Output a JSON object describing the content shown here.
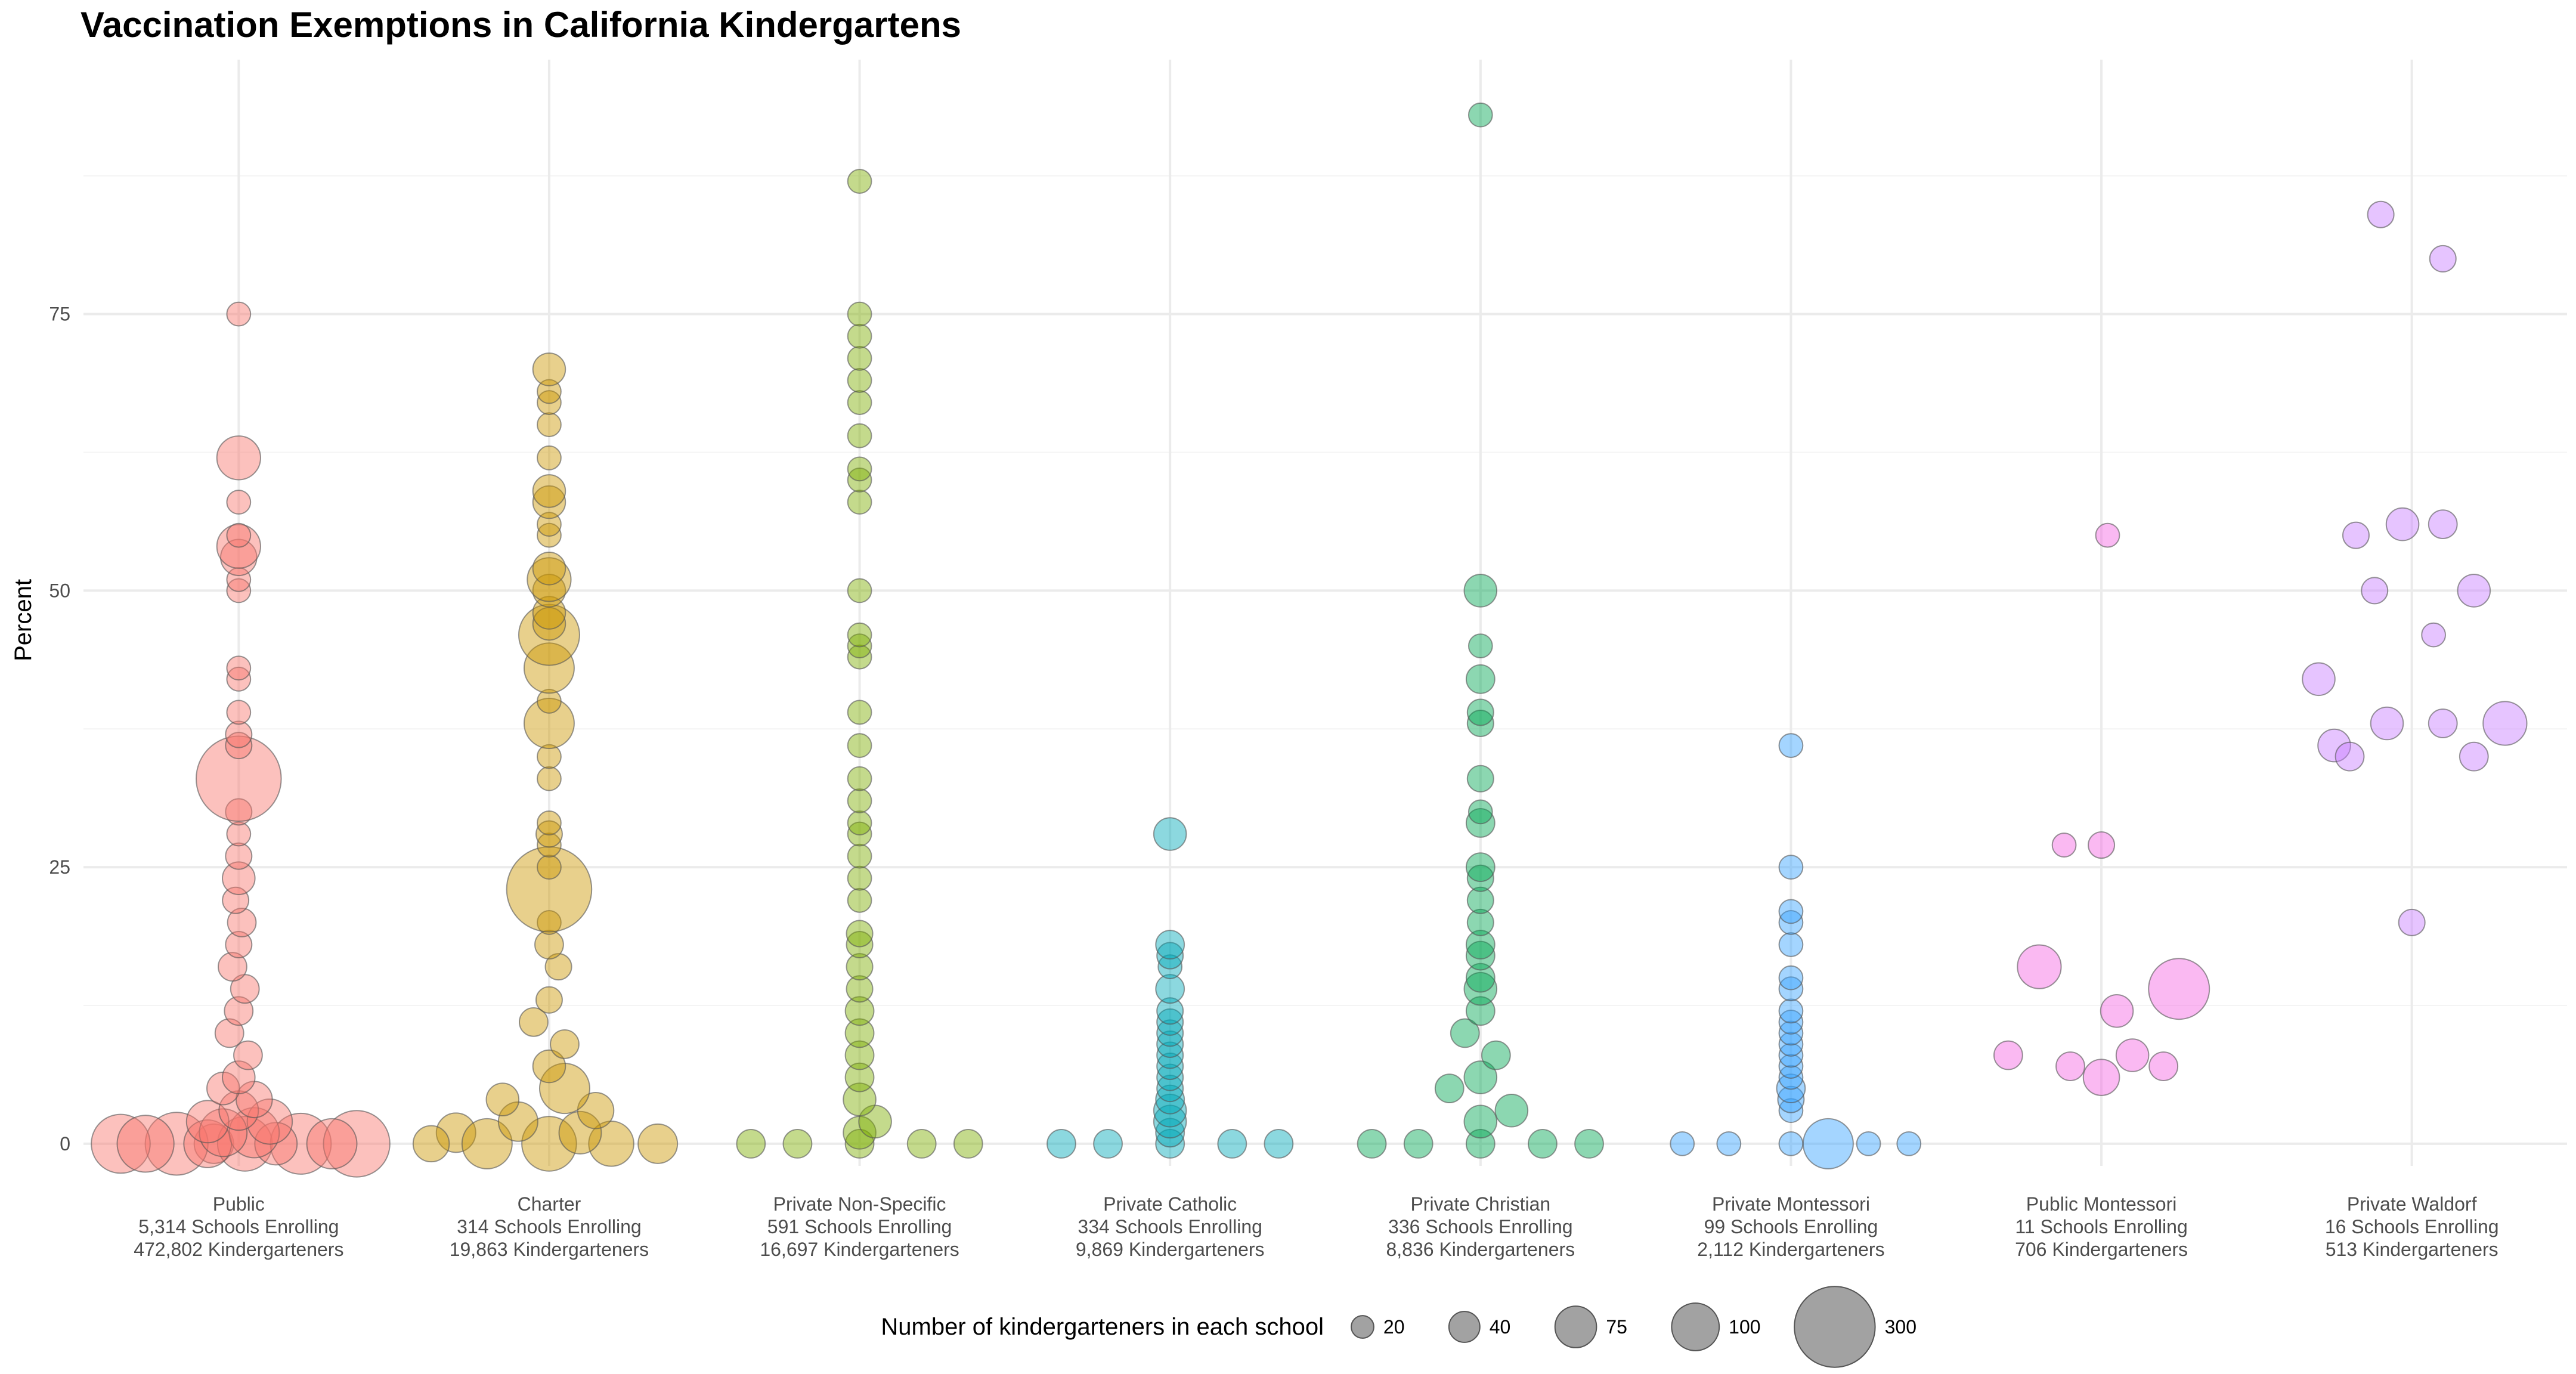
{
  "chart_data": {
    "type": "scatter",
    "title": "Vaccination Exemptions in California Kindergartens",
    "xlabel": "",
    "ylabel": "Percent",
    "ylim": [
      -2,
      98
    ],
    "yticks": [
      0,
      25,
      50,
      75
    ],
    "grid": true,
    "legend": {
      "title": "Number of kindergarteners in each school",
      "placement": "bottom",
      "sizes": [
        20,
        40,
        75,
        100,
        300
      ],
      "labels": [
        "20",
        "40",
        "75",
        "100",
        "300"
      ]
    },
    "categories": [
      {
        "label": "Public",
        "schools": "5,314 Schools Enrolling",
        "kids": "472,802 Kindergarteners",
        "color": "#F8766D"
      },
      {
        "label": "Charter",
        "schools": "314 Schools Enrolling",
        "kids": "19,863 Kindergarteners",
        "color": "#CD9600"
      },
      {
        "label": "Private Non-Specific",
        "schools": "591 Schools Enrolling",
        "kids": "16,697 Kindergarteners",
        "color": "#7CAE00"
      },
      {
        "label": "Private Catholic",
        "schools": "334 Schools Enrolling",
        "kids": "9,869 Kindergarteners",
        "color": "#00A9B8"
      },
      {
        "label": "Private Christian",
        "schools": "336 Schools Enrolling",
        "kids": "8,836 Kindergarteners",
        "color": "#00A652"
      },
      {
        "label": "Private Montessori",
        "schools": "99 Schools Enrolling",
        "kids": "2,112 Kindergarteners",
        "color": "#35A2FF"
      },
      {
        "label": "Public Montessori",
        "schools": "11 Schools Enrolling",
        "kids": "706 Kindergarteners",
        "color": "#F563E3"
      },
      {
        "label": "Private Waldorf",
        "schools": "16 Schools Enrolling",
        "kids": "513 Kindergarteners",
        "color": "#C77CFF"
      }
    ],
    "series": [
      {
        "name": "Public",
        "points": [
          [
            -0.08,
            0,
            60
          ],
          [
            0.02,
            0,
            120
          ],
          [
            0.2,
            0,
            150
          ],
          [
            0.38,
            0,
            180
          ],
          [
            -0.2,
            0,
            160
          ],
          [
            -0.38,
            0,
            140
          ],
          [
            -0.1,
            0,
            90
          ],
          [
            0.12,
            0,
            70
          ],
          [
            0.3,
            0,
            100
          ],
          [
            -0.3,
            0,
            130
          ],
          [
            0.05,
            1,
            100
          ],
          [
            -0.05,
            1,
            90
          ],
          [
            0.1,
            2,
            80
          ],
          [
            -0.1,
            2,
            70
          ],
          [
            0.0,
            3,
            60
          ],
          [
            0.05,
            4,
            50
          ],
          [
            -0.05,
            5,
            40
          ],
          [
            0.0,
            6,
            40
          ],
          [
            0.03,
            8,
            30
          ],
          [
            -0.03,
            10,
            30
          ],
          [
            0.0,
            12,
            30
          ],
          [
            0.02,
            14,
            30
          ],
          [
            -0.02,
            16,
            30
          ],
          [
            0.0,
            18,
            25
          ],
          [
            0.01,
            20,
            30
          ],
          [
            -0.01,
            22,
            25
          ],
          [
            0.0,
            24,
            40
          ],
          [
            0.0,
            26,
            25
          ],
          [
            0.0,
            28,
            20
          ],
          [
            0.0,
            30,
            25
          ],
          [
            0.0,
            33,
            300
          ],
          [
            0.0,
            36,
            25
          ],
          [
            0.0,
            37,
            25
          ],
          [
            0.0,
            39,
            20
          ],
          [
            0.0,
            42,
            20
          ],
          [
            0.0,
            43,
            20
          ],
          [
            0.0,
            50,
            20
          ],
          [
            0.0,
            51,
            20
          ],
          [
            0.0,
            53,
            50
          ],
          [
            0.0,
            54,
            75
          ],
          [
            0.0,
            55,
            20
          ],
          [
            0.0,
            58,
            20
          ],
          [
            0.0,
            62,
            75
          ],
          [
            0.0,
            75,
            20
          ]
        ]
      },
      {
        "name": "Charter",
        "points": [
          [
            -0.3,
            1,
            60
          ],
          [
            -0.2,
            0,
            100
          ],
          [
            0.0,
            0,
            120
          ],
          [
            0.2,
            0,
            80
          ],
          [
            0.35,
            0,
            60
          ],
          [
            -0.38,
            0,
            50
          ],
          [
            0.1,
            1,
            70
          ],
          [
            -0.1,
            2,
            60
          ],
          [
            0.15,
            3,
            50
          ],
          [
            -0.15,
            4,
            40
          ],
          [
            0.05,
            5,
            100
          ],
          [
            0.0,
            7,
            40
          ],
          [
            0.05,
            9,
            30
          ],
          [
            -0.05,
            11,
            30
          ],
          [
            0.0,
            13,
            25
          ],
          [
            0.03,
            16,
            25
          ],
          [
            0.0,
            18,
            30
          ],
          [
            0.0,
            20,
            20
          ],
          [
            0.0,
            23,
            300
          ],
          [
            0.0,
            25,
            20
          ],
          [
            0.0,
            27,
            20
          ],
          [
            0.0,
            28,
            25
          ],
          [
            0.0,
            29,
            20
          ],
          [
            0.0,
            33,
            20
          ],
          [
            0.0,
            35,
            20
          ],
          [
            0.0,
            38,
            100
          ],
          [
            0.0,
            40,
            20
          ],
          [
            0.0,
            43,
            100
          ],
          [
            0.0,
            46,
            150
          ],
          [
            0.0,
            47,
            40
          ],
          [
            0.0,
            48,
            40
          ],
          [
            0.0,
            50,
            40
          ],
          [
            0.0,
            51,
            75
          ],
          [
            0.0,
            52,
            40
          ],
          [
            0.0,
            55,
            20
          ],
          [
            0.0,
            56,
            20
          ],
          [
            0.0,
            58,
            40
          ],
          [
            0.0,
            59,
            40
          ],
          [
            0.0,
            62,
            20
          ],
          [
            0.0,
            65,
            20
          ],
          [
            0.0,
            67,
            20
          ],
          [
            0.0,
            68,
            20
          ],
          [
            0.0,
            70,
            40
          ]
        ]
      },
      {
        "name": "Private Non-Specific",
        "points": [
          [
            -0.35,
            0,
            30
          ],
          [
            -0.2,
            0,
            30
          ],
          [
            0.0,
            0,
            30
          ],
          [
            0.2,
            0,
            30
          ],
          [
            0.35,
            0,
            30
          ],
          [
            0.0,
            1,
            40
          ],
          [
            0.05,
            2,
            40
          ],
          [
            0.0,
            4,
            40
          ],
          [
            0.0,
            6,
            30
          ],
          [
            0.0,
            8,
            30
          ],
          [
            0.0,
            10,
            30
          ],
          [
            0.0,
            12,
            30
          ],
          [
            0.0,
            14,
            25
          ],
          [
            0.0,
            16,
            25
          ],
          [
            0.0,
            18,
            25
          ],
          [
            0.0,
            19,
            25
          ],
          [
            0.0,
            22,
            20
          ],
          [
            0.0,
            24,
            20
          ],
          [
            0.0,
            26,
            20
          ],
          [
            0.0,
            28,
            20
          ],
          [
            0.0,
            29,
            20
          ],
          [
            0.0,
            31,
            20
          ],
          [
            0.0,
            33,
            20
          ],
          [
            0.0,
            36,
            20
          ],
          [
            0.0,
            39,
            20
          ],
          [
            0.0,
            44,
            20
          ],
          [
            0.0,
            45,
            20
          ],
          [
            0.0,
            46,
            20
          ],
          [
            0.0,
            50,
            20
          ],
          [
            0.0,
            58,
            20
          ],
          [
            0.0,
            60,
            20
          ],
          [
            0.0,
            61,
            20
          ],
          [
            0.0,
            64,
            20
          ],
          [
            0.0,
            67,
            20
          ],
          [
            0.0,
            69,
            20
          ],
          [
            0.0,
            71,
            20
          ],
          [
            0.0,
            73,
            20
          ],
          [
            0.0,
            75,
            20
          ],
          [
            0.0,
            87,
            20
          ]
        ]
      },
      {
        "name": "Private Catholic",
        "points": [
          [
            -0.35,
            0,
            30
          ],
          [
            -0.2,
            0,
            30
          ],
          [
            0.0,
            0,
            30
          ],
          [
            0.2,
            0,
            30
          ],
          [
            0.35,
            0,
            30
          ],
          [
            0.0,
            1,
            30
          ],
          [
            0.0,
            2,
            40
          ],
          [
            0.0,
            3,
            40
          ],
          [
            0.0,
            4,
            30
          ],
          [
            0.0,
            5,
            25
          ],
          [
            0.0,
            6,
            25
          ],
          [
            0.0,
            7,
            25
          ],
          [
            0.0,
            8,
            25
          ],
          [
            0.0,
            9,
            25
          ],
          [
            0.0,
            10,
            25
          ],
          [
            0.0,
            11,
            25
          ],
          [
            0.0,
            12,
            25
          ],
          [
            0.0,
            14,
            30
          ],
          [
            0.0,
            16,
            20
          ],
          [
            0.0,
            17,
            25
          ],
          [
            0.0,
            18,
            30
          ],
          [
            0.0,
            28,
            40
          ]
        ]
      },
      {
        "name": "Private Christian",
        "points": [
          [
            -0.35,
            0,
            30
          ],
          [
            -0.2,
            0,
            30
          ],
          [
            0.0,
            0,
            30
          ],
          [
            0.2,
            0,
            30
          ],
          [
            0.35,
            0,
            30
          ],
          [
            0.0,
            2,
            40
          ],
          [
            0.1,
            3,
            40
          ],
          [
            -0.1,
            5,
            30
          ],
          [
            0.0,
            6,
            40
          ],
          [
            0.05,
            8,
            30
          ],
          [
            -0.05,
            10,
            30
          ],
          [
            0.0,
            12,
            30
          ],
          [
            0.0,
            14,
            40
          ],
          [
            0.0,
            15,
            30
          ],
          [
            0.0,
            17,
            30
          ],
          [
            0.0,
            18,
            30
          ],
          [
            0.0,
            20,
            25
          ],
          [
            0.0,
            22,
            25
          ],
          [
            0.0,
            24,
            25
          ],
          [
            0.0,
            25,
            30
          ],
          [
            0.0,
            29,
            30
          ],
          [
            0.0,
            30,
            20
          ],
          [
            0.0,
            33,
            25
          ],
          [
            0.0,
            38,
            25
          ],
          [
            0.0,
            39,
            25
          ],
          [
            0.0,
            42,
            30
          ],
          [
            0.0,
            45,
            20
          ],
          [
            0.0,
            50,
            40
          ],
          [
            0.0,
            93,
            20
          ]
        ]
      },
      {
        "name": "Private Montessori",
        "points": [
          [
            -0.35,
            0,
            20
          ],
          [
            -0.2,
            0,
            20
          ],
          [
            0.0,
            0,
            20
          ],
          [
            0.12,
            0,
            100
          ],
          [
            0.25,
            0,
            20
          ],
          [
            0.38,
            0,
            20
          ],
          [
            0.0,
            3,
            20
          ],
          [
            0.0,
            4,
            25
          ],
          [
            0.0,
            5,
            30
          ],
          [
            0.0,
            6,
            20
          ],
          [
            0.0,
            7,
            20
          ],
          [
            0.0,
            8,
            20
          ],
          [
            0.0,
            9,
            20
          ],
          [
            0.0,
            10,
            20
          ],
          [
            0.0,
            11,
            20
          ],
          [
            0.0,
            12,
            20
          ],
          [
            0.0,
            14,
            20
          ],
          [
            0.0,
            15,
            20
          ],
          [
            0.0,
            18,
            20
          ],
          [
            0.0,
            20,
            20
          ],
          [
            0.0,
            21,
            20
          ],
          [
            0.0,
            25,
            20
          ],
          [
            0.0,
            36,
            20
          ]
        ]
      },
      {
        "name": "Public Montessori",
        "points": [
          [
            -0.3,
            8,
            30
          ],
          [
            -0.2,
            16,
            75
          ],
          [
            -0.1,
            7,
            30
          ],
          [
            0.0,
            6,
            50
          ],
          [
            0.05,
            12,
            40
          ],
          [
            0.1,
            8,
            40
          ],
          [
            0.2,
            7,
            30
          ],
          [
            0.25,
            14,
            150
          ],
          [
            -0.12,
            27,
            20
          ],
          [
            0.0,
            27,
            25
          ],
          [
            0.02,
            55,
            20
          ]
        ]
      },
      {
        "name": "Private Waldorf",
        "points": [
          [
            -0.3,
            42,
            40
          ],
          [
            -0.25,
            36,
            40
          ],
          [
            -0.2,
            35,
            30
          ],
          [
            -0.18,
            55,
            25
          ],
          [
            -0.12,
            50,
            25
          ],
          [
            -0.08,
            38,
            40
          ],
          [
            -0.1,
            84,
            25
          ],
          [
            -0.03,
            56,
            40
          ],
          [
            0.0,
            20,
            25
          ],
          [
            0.07,
            46,
            20
          ],
          [
            0.1,
            80,
            25
          ],
          [
            0.1,
            56,
            30
          ],
          [
            0.1,
            38,
            30
          ],
          [
            0.2,
            50,
            40
          ],
          [
            0.2,
            35,
            30
          ],
          [
            0.3,
            38,
            75
          ]
        ]
      }
    ]
  }
}
